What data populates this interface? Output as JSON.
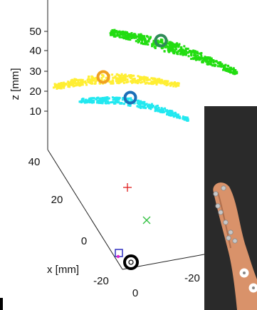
{
  "chart_data": {
    "type": "scatter",
    "title": "",
    "xlabel": "x [mm]",
    "zlabel": "z [mm]",
    "z_ticks": [
      "50",
      "40",
      "30",
      "20",
      "10"
    ],
    "y_ticks": [
      "40",
      "20",
      "0",
      "-20"
    ],
    "x_ticks": [
      "0",
      "-20"
    ],
    "grid": false,
    "legend": "none",
    "point_clouds": [
      {
        "color": "#22dd11",
        "center_marker_color": "#2e8b57"
      },
      {
        "color": "#ffee33",
        "center_marker_color": "#f0a020"
      },
      {
        "color": "#22e8f0",
        "center_marker_color": "#1a6fb8"
      }
    ],
    "markers": [
      {
        "kind": "plus",
        "color": "#e02020"
      },
      {
        "kind": "cross",
        "color": "#30c040"
      },
      {
        "kind": "square",
        "color": "#3030c0"
      },
      {
        "kind": "ring",
        "color": "#000000"
      }
    ],
    "inset": {
      "description_free": true,
      "background": "#2a2a2a",
      "finger_color": "#d9926a"
    }
  }
}
